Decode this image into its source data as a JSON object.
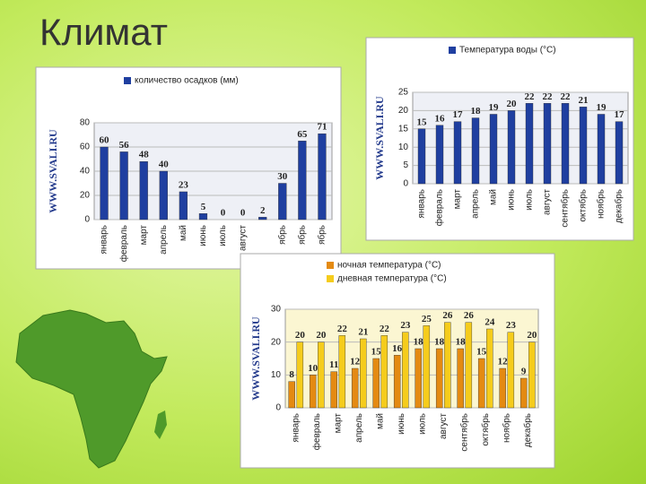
{
  "title": "Климат",
  "watermark": "WWW.SVALI.RU",
  "chart_data": [
    {
      "type": "bar",
      "categories": [
        "январь",
        "февраль",
        "март",
        "апрель",
        "май",
        "июнь",
        "июль",
        "август",
        null,
        "ябрь",
        "ябрь",
        "ябрь"
      ],
      "series": [
        {
          "name": "количество осадков (мм)",
          "color": "#1f3fa0",
          "values": [
            60,
            56,
            48,
            40,
            23,
            5,
            0,
            0,
            2,
            30,
            65,
            71
          ]
        }
      ],
      "ylim": [
        0,
        80
      ],
      "yticks": [
        0,
        20,
        40,
        60,
        80
      ]
    },
    {
      "type": "bar",
      "categories": [
        "январь",
        "февраль",
        "март",
        "апрель",
        "май",
        "июнь",
        "июль",
        "август",
        "сентябрь",
        "октябрь",
        "ноябрь",
        "декабрь"
      ],
      "series": [
        {
          "name": "Температура воды (°C)",
          "color": "#1f3fa0",
          "values": [
            15,
            16,
            17,
            18,
            19,
            20,
            22,
            22,
            22,
            21,
            19,
            17
          ]
        }
      ],
      "ylim": [
        0,
        25
      ],
      "yticks": [
        0,
        5,
        10,
        15,
        20,
        25
      ]
    },
    {
      "type": "bar",
      "categories": [
        "январь",
        "февраль",
        "март",
        "апрель",
        "май",
        "июнь",
        "июль",
        "август",
        "сентябрь",
        "октябрь",
        "ноябрь",
        "декабрь"
      ],
      "series": [
        {
          "name": "ночная температура (°C)",
          "color": "#e48a12",
          "values": [
            8,
            10,
            11,
            12,
            15,
            16,
            18,
            18,
            18,
            15,
            12,
            9
          ]
        },
        {
          "name": "дневная температура (°C)",
          "color": "#f5cc1c",
          "values": [
            20,
            20,
            22,
            21,
            22,
            23,
            25,
            26,
            26,
            24,
            23,
            20
          ]
        }
      ],
      "ylim": [
        0,
        30
      ],
      "yticks": [
        0,
        10,
        20,
        30
      ]
    }
  ]
}
